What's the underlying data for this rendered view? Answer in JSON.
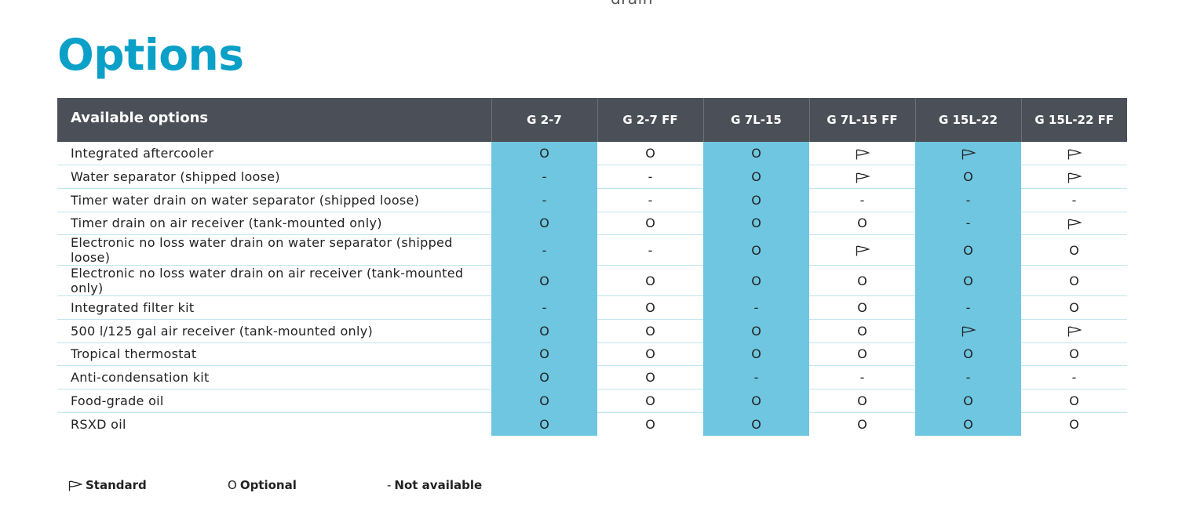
{
  "cut_text": "drain",
  "page_title": "Options",
  "table": {
    "label_header": "Available options",
    "models": [
      "G 2-7",
      "G 2-7 FF",
      "G 7L-15",
      "G 7L-15 FF",
      "G 15L-22",
      "G 15L-22 FF"
    ],
    "highlight_columns": [
      0,
      2,
      4
    ],
    "rows": [
      {
        "label": "Integrated aftercooler",
        "cells": [
          "O",
          "O",
          "O",
          "S",
          "S",
          "S"
        ]
      },
      {
        "label": "Water separator (shipped loose)",
        "cells": [
          "-",
          "-",
          "O",
          "S",
          "O",
          "S"
        ]
      },
      {
        "label": "Timer water drain on water separator (shipped loose)",
        "cells": [
          "-",
          "-",
          "O",
          "-",
          "-",
          "-"
        ]
      },
      {
        "label": "Timer drain on air receiver (tank-mounted only)",
        "cells": [
          "O",
          "O",
          "O",
          "O",
          "-",
          "S"
        ]
      },
      {
        "label": "Electronic no loss water drain on water separator (shipped loose)",
        "cells": [
          "-",
          "-",
          "O",
          "S",
          "O",
          "O"
        ]
      },
      {
        "label": "Electronic no loss water drain on air receiver (tank-mounted only)",
        "cells": [
          "O",
          "O",
          "O",
          "O",
          "O",
          "O"
        ]
      },
      {
        "label": "Integrated filter kit",
        "cells": [
          "-",
          "O",
          "-",
          "O",
          "-",
          "O"
        ]
      },
      {
        "label": "500 l/125  gal air receiver (tank-mounted only)",
        "cells": [
          "O",
          "O",
          "O",
          "O",
          "S",
          "S"
        ]
      },
      {
        "label": "Tropical thermostat",
        "cells": [
          "O",
          "O",
          "O",
          "O",
          "O",
          "O"
        ]
      },
      {
        "label": "Anti-condensation kit",
        "cells": [
          "O",
          "O",
          "-",
          "-",
          "-",
          "-"
        ]
      },
      {
        "label": "Food-grade oil",
        "cells": [
          "O",
          "O",
          "O",
          "O",
          "O",
          "O"
        ]
      },
      {
        "label": "RSXD oil",
        "cells": [
          "O",
          "O",
          "O",
          "O",
          "O",
          "O"
        ]
      }
    ]
  },
  "symbols": {
    "O": "O",
    "-": "-",
    "S": "standard-flag-icon"
  },
  "legend": {
    "standard": "Standard",
    "optional_symbol": "O",
    "optional": "Optional",
    "not_available_symbol": "-",
    "not_available": "Not available"
  },
  "colors": {
    "title": "#0aa0c8",
    "header_bg": "#4b5058",
    "highlight": "#6ec6e0",
    "row_divider": "#bfe6ef"
  }
}
